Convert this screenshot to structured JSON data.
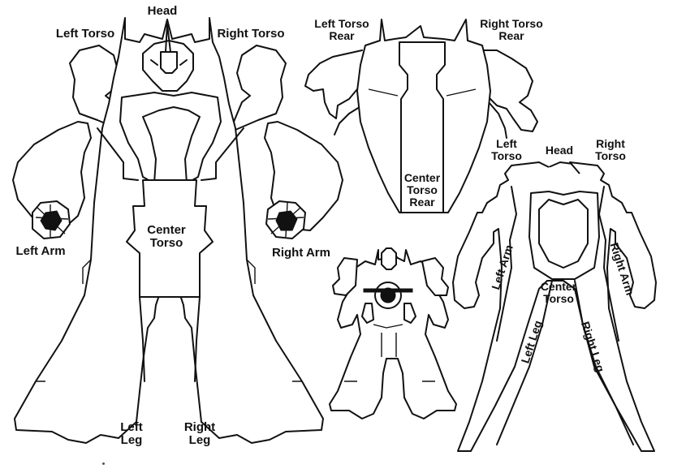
{
  "front_view": {
    "labels": {
      "head": "Head",
      "left_torso": "Left Torso",
      "right_torso": "Right Torso",
      "center_torso": "Center\nTorso",
      "left_arm": "Left Arm",
      "right_arm": "Right Arm",
      "left_leg": "Left\nLeg",
      "right_leg": "Right\nLeg"
    }
  },
  "rear_view": {
    "labels": {
      "left_torso_rear": "Left Torso\nRear",
      "right_torso_rear": "Right Torso\nRear",
      "center_torso_rear": "Center\nTorso\nRear"
    }
  },
  "schematic_view": {
    "labels": {
      "head": "Head",
      "left_torso": "Left\nTorso",
      "right_torso": "Right\nTorso",
      "left_arm": "Left Arm",
      "right_arm": "Right Arm",
      "center_torso": "Center\nTorso",
      "left_leg": "Left Leg",
      "right_leg": "Right Leg"
    }
  },
  "colors": {
    "ink": "#111111",
    "paper": "#ffffff"
  }
}
